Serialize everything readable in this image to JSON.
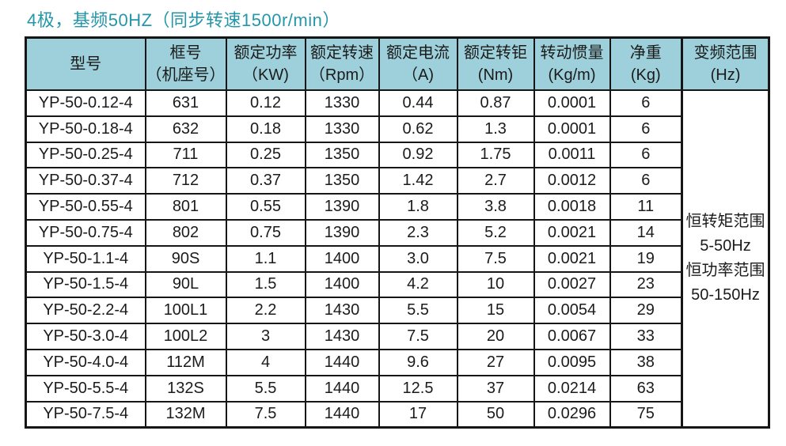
{
  "title": "4极，基频50HZ（同步转速1500r/min）",
  "colors": {
    "title_text": "#2397a9",
    "header_bg": "#9dd0da",
    "border": "#161616",
    "body_text": "#1b1b1b",
    "body_bg": "#ffffff"
  },
  "table": {
    "headers": [
      {
        "lines": [
          "型号"
        ]
      },
      {
        "lines": [
          "框号",
          "（机座号）"
        ]
      },
      {
        "lines": [
          "额定功率",
          "（KW)"
        ]
      },
      {
        "lines": [
          "额定转速",
          "（Rpm）"
        ]
      },
      {
        "lines": [
          "额定电流",
          "（A)"
        ]
      },
      {
        "lines": [
          "额定转钜",
          "(Nm)"
        ]
      },
      {
        "lines": [
          "转动惯量",
          "(Kg/m)"
        ]
      },
      {
        "lines": [
          "净重",
          "(Kg)"
        ]
      },
      {
        "lines": [
          "变频范围",
          "(Hz)"
        ]
      }
    ],
    "rows": [
      [
        "YP-50-0.12-4",
        "631",
        "0.12",
        "1330",
        "0.44",
        "0.87",
        "0.0001",
        "6"
      ],
      [
        "YP-50-0.18-4",
        "632",
        "0.18",
        "1330",
        "0.62",
        "1.3",
        "0.0001",
        "6"
      ],
      [
        "YP-50-0.25-4",
        "711",
        "0.25",
        "1350",
        "0.92",
        "1.75",
        "0.0011",
        "6"
      ],
      [
        "YP-50-0.37-4",
        "712",
        "0.37",
        "1350",
        "1.42",
        "2.7",
        "0.0012",
        "6"
      ],
      [
        "YP-50-0.55-4",
        "801",
        "0.55",
        "1390",
        "1.8",
        "3.8",
        "0.0018",
        "11"
      ],
      [
        "YP-50-0.75-4",
        "802",
        "0.75",
        "1390",
        "2.3",
        "5.2",
        "0.0021",
        "14"
      ],
      [
        "YP-50-1.1-4",
        "90S",
        "1.1",
        "1400",
        "3.0",
        "7.5",
        "0.0021",
        "19"
      ],
      [
        "YP-50-1.5-4",
        "90L",
        "1.5",
        "1400",
        "4.2",
        "10",
        "0.0027",
        "23"
      ],
      [
        "YP-50-2.2-4",
        "100L1",
        "2.2",
        "1430",
        "5.5",
        "15",
        "0.0054",
        "29"
      ],
      [
        "YP-50-3.0-4",
        "100L2",
        "3",
        "1430",
        "7.5",
        "20",
        "0.0067",
        "33"
      ],
      [
        "YP-50-4.0-4",
        "112M",
        "4",
        "1440",
        "9.6",
        "27",
        "0.0095",
        "38"
      ],
      [
        "YP-50-5.5-4",
        "132S",
        "5.5",
        "1440",
        "12.5",
        "37",
        "0.0214",
        "63"
      ],
      [
        "YP-50-7.5-4",
        "132M",
        "7.5",
        "1440",
        "17",
        "50",
        "0.0296",
        "75"
      ]
    ],
    "freq_note": {
      "lines": [
        "恒转矩范围",
        "5-50Hz",
        "恒功率范围",
        "50-150Hz"
      ]
    }
  }
}
